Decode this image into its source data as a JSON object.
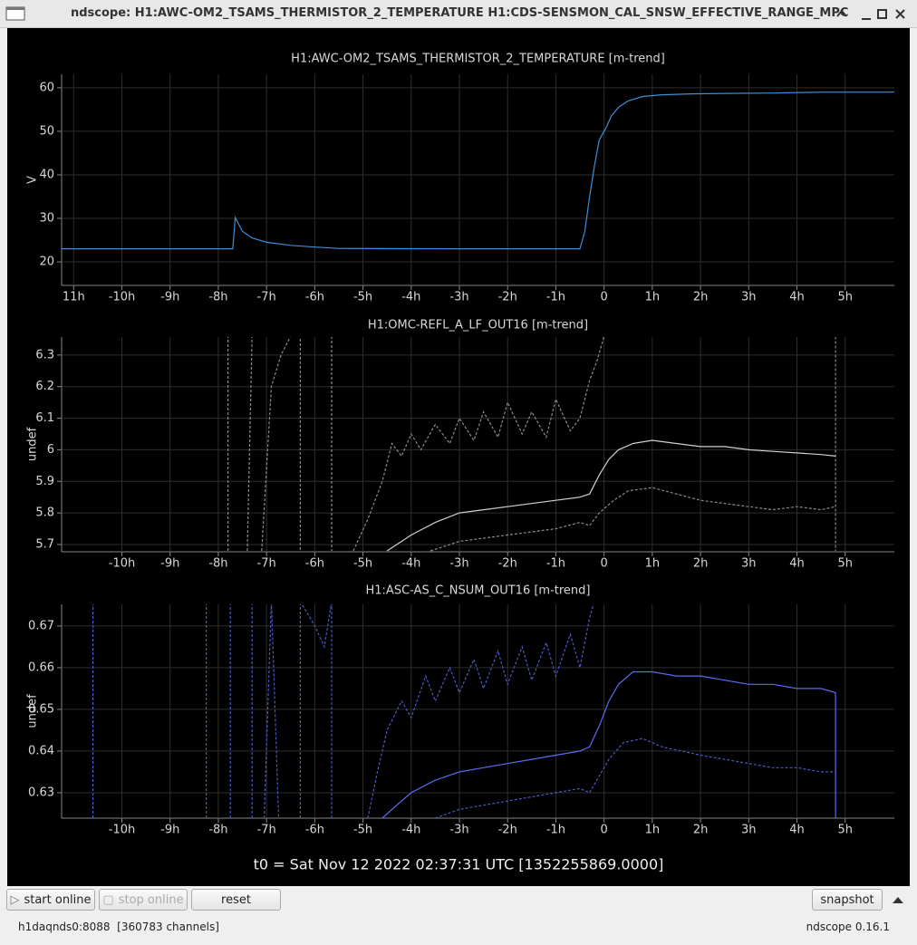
{
  "window": {
    "title": "ndscope: H1:AWC-OM2_TSAMS_THERMISTOR_2_TEMPERATURE H1:CDS-SENSMON_CAL_SNSW_EFFECTIVE_RANGE_MPC"
  },
  "chart_data": [
    {
      "type": "line",
      "title": "H1:AWC-OM2_TSAMS_THERMISTOR_2_TEMPERATURE [m-trend]",
      "ylabel": "V",
      "grid": true,
      "xlim": [
        -11.25,
        6.02
      ],
      "ylim": [
        14.6,
        63.1
      ],
      "xticks": [
        {
          "value": -11,
          "label": "11h"
        },
        {
          "value": -10,
          "label": "-10h"
        },
        {
          "value": -9,
          "label": "-9h"
        },
        {
          "value": -8,
          "label": "-8h"
        },
        {
          "value": -7,
          "label": "-7h"
        },
        {
          "value": -6,
          "label": "-6h"
        },
        {
          "value": -5,
          "label": "-5h"
        },
        {
          "value": -4,
          "label": "-4h"
        },
        {
          "value": -3,
          "label": "-3h"
        },
        {
          "value": -2,
          "label": "-2h"
        },
        {
          "value": -1,
          "label": "-1h"
        },
        0,
        {
          "value": 1,
          "label": "1h"
        },
        {
          "value": 2,
          "label": "2h"
        },
        {
          "value": 3,
          "label": "3h"
        },
        {
          "value": 4,
          "label": "4h"
        },
        {
          "value": 5,
          "label": "5h"
        }
      ],
      "yticks": [
        20,
        30,
        40,
        50,
        60
      ],
      "series": [
        {
          "color": "#3c8fd8",
          "dashed": false,
          "x": [
            -11.25,
            -7.7,
            -7.65,
            -7.5,
            -7.3,
            -7,
            -6.5,
            -6,
            -5.5,
            -3,
            -0.5,
            -0.4,
            -0.3,
            -0.2,
            -0.1,
            0.05,
            0.15,
            0.3,
            0.5,
            0.8,
            1.2,
            1.8,
            2.5,
            3.5,
            4.5,
            6.02
          ],
          "values": [
            23,
            23,
            30.2,
            27,
            25.5,
            24.5,
            23.8,
            23.4,
            23.1,
            23,
            23,
            27,
            35,
            42,
            48,
            51,
            53.5,
            55.5,
            57,
            58,
            58.4,
            58.6,
            58.7,
            58.8,
            59,
            59
          ]
        }
      ]
    },
    {
      "type": "line",
      "title": "H1:OMC-REFL_A_LF_OUT16 [m-trend]",
      "ylabel": "undef",
      "grid": true,
      "xlim": [
        -11.25,
        6.02
      ],
      "ylim": [
        5.677,
        6.357
      ],
      "xticks": [
        {
          "value": -10,
          "label": "-10h"
        },
        {
          "value": -9,
          "label": "-9h"
        },
        {
          "value": -8,
          "label": "-8h"
        },
        {
          "value": -7,
          "label": "-7h"
        },
        {
          "value": -6,
          "label": "-6h"
        },
        {
          "value": -5,
          "label": "-5h"
        },
        {
          "value": -4,
          "label": "-4h"
        },
        {
          "value": -3,
          "label": "-3h"
        },
        {
          "value": -2,
          "label": "-2h"
        },
        {
          "value": -1,
          "label": "-1h"
        },
        0,
        {
          "value": 1,
          "label": "1h"
        },
        {
          "value": 2,
          "label": "2h"
        },
        {
          "value": 3,
          "label": "3h"
        },
        {
          "value": 4,
          "label": "4h"
        },
        {
          "value": 5,
          "label": "5h"
        }
      ],
      "yticks": [
        5.7,
        5.8,
        5.9,
        6,
        6.1,
        6.2,
        6.3
      ],
      "series": [
        {
          "color": "#8a8a8a",
          "dashed": true,
          "x": [
            -7.8,
            -7.8,
            -7.75,
            -7.4,
            -7.3,
            -7.25,
            -7.1,
            -6.9,
            -6.7,
            -6.5,
            -6.3,
            -6.3,
            -6.2,
            -5.65,
            -5.65,
            -5.6,
            -5.2,
            -4.9,
            -4.6,
            -4.4,
            -4.2,
            -4.0,
            -3.8,
            -3.5,
            -3.2,
            -3.0,
            -2.7,
            -2.5,
            -2.2,
            -2.0,
            -1.7,
            -1.5,
            -1.2,
            -1.0,
            -0.7,
            -0.5,
            -0.3,
            -0.15,
            0,
            4.8,
            4.8
          ],
          "values": [
            5.68,
            6.36,
            null,
            5.68,
            6.36,
            null,
            5.68,
            6.2,
            6.3,
            6.36,
            6.36,
            5.68,
            null,
            6.36,
            5.68,
            null,
            5.68,
            5.78,
            5.9,
            6.02,
            5.98,
            6.05,
            6.0,
            6.08,
            6.02,
            6.1,
            6.03,
            6.12,
            6.04,
            6.15,
            6.05,
            6.12,
            6.04,
            6.16,
            6.06,
            6.1,
            6.22,
            6.28,
            6.36,
            6.36,
            5.68
          ]
        },
        {
          "color": "#8a8a8a",
          "dashed": true,
          "x": [
            -3.6,
            -3,
            -2.5,
            -2,
            -1.5,
            -1,
            -0.5,
            -0.3,
            -0.1,
            0.2,
            0.5,
            1,
            1.5,
            2,
            2.5,
            3,
            3.5,
            4,
            4.5,
            4.8
          ],
          "values": [
            5.68,
            5.71,
            5.72,
            5.73,
            5.74,
            5.75,
            5.77,
            5.76,
            5.8,
            5.84,
            5.87,
            5.88,
            5.86,
            5.84,
            5.83,
            5.82,
            5.81,
            5.82,
            5.81,
            5.82
          ]
        },
        {
          "color": "#d0d0d0",
          "dashed": false,
          "x": [
            -4.5,
            -4.2,
            -4,
            -3.5,
            -3,
            -2.5,
            -2,
            -1.5,
            -1,
            -0.5,
            -0.3,
            -0.1,
            0.1,
            0.3,
            0.6,
            1,
            1.5,
            2,
            2.5,
            3,
            3.5,
            4,
            4.5,
            4.8
          ],
          "values": [
            5.68,
            5.71,
            5.73,
            5.77,
            5.8,
            5.81,
            5.82,
            5.83,
            5.84,
            5.85,
            5.86,
            5.92,
            5.97,
            6.0,
            6.02,
            6.03,
            6.02,
            6.01,
            6.01,
            6.0,
            5.995,
            5.99,
            5.985,
            5.98
          ]
        }
      ]
    },
    {
      "type": "line",
      "title": "H1:ASC-AS_C_NSUM_OUT16 [m-trend]",
      "ylabel": "undef",
      "grid": true,
      "xlim": [
        -11.25,
        6.02
      ],
      "ylim": [
        0.6239,
        0.6752
      ],
      "xticks": [
        {
          "value": -10,
          "label": "-10h"
        },
        {
          "value": -9,
          "label": "-9h"
        },
        {
          "value": -8,
          "label": "-8h"
        },
        {
          "value": -7,
          "label": "-7h"
        },
        {
          "value": -6,
          "label": "-6h"
        },
        {
          "value": -5,
          "label": "-5h"
        },
        {
          "value": -4,
          "label": "-4h"
        },
        {
          "value": -3,
          "label": "-3h"
        },
        {
          "value": -2,
          "label": "-2h"
        },
        {
          "value": -1,
          "label": "-1h"
        },
        0,
        {
          "value": 1,
          "label": "1h"
        },
        {
          "value": 2,
          "label": "2h"
        },
        {
          "value": 3,
          "label": "3h"
        },
        {
          "value": 4,
          "label": "4h"
        },
        {
          "value": 5,
          "label": "5h"
        }
      ],
      "yticks": [
        0.63,
        0.64,
        0.65,
        0.66,
        0.67
      ],
      "series": [
        {
          "color": "#4a58c0",
          "dashed": true,
          "x": [
            -10.6,
            -10.6,
            -10.55,
            -8.25,
            -8.25,
            -8.2,
            -7.75,
            -7.75,
            -7.7,
            -7.3,
            -7.3,
            -7.25,
            -7.05,
            -6.9,
            -6.75,
            -6.7,
            -6.3,
            -6.3,
            -6.0,
            -5.8,
            -5.65,
            -5.65,
            -5.6,
            -4.9,
            -4.7,
            -4.5,
            -4.2,
            -4,
            -3.7,
            -3.5,
            -3.2,
            -3,
            -2.7,
            -2.5,
            -2.2,
            -2,
            -1.7,
            -1.5,
            -1.2,
            -1,
            -0.7,
            -0.5,
            -0.3,
            -0.2
          ],
          "values": [
            0.6239,
            0.676,
            null,
            0.6239,
            0.676,
            null,
            0.6239,
            0.676,
            null,
            0.6239,
            0.676,
            null,
            0.6239,
            0.676,
            0.6239,
            null,
            0.6239,
            0.676,
            0.67,
            0.665,
            0.676,
            0.6239,
            null,
            0.6239,
            0.635,
            0.645,
            0.652,
            0.648,
            0.658,
            0.652,
            0.66,
            0.654,
            0.662,
            0.655,
            0.664,
            0.656,
            0.665,
            0.657,
            0.666,
            0.658,
            0.668,
            0.66,
            0.672,
            0.676
          ]
        },
        {
          "color": "#4a58c0",
          "dashed": true,
          "x": [
            -3.5,
            -3,
            -2.5,
            -2,
            -1.5,
            -1,
            -0.5,
            -0.3,
            -0.1,
            0.1,
            0.4,
            0.8,
            1.2,
            2,
            2.5,
            3,
            3.5,
            4,
            4.5,
            4.8
          ],
          "values": [
            0.6239,
            0.626,
            0.627,
            0.628,
            0.629,
            0.63,
            0.631,
            0.63,
            0.634,
            0.638,
            0.642,
            0.643,
            0.641,
            0.639,
            0.638,
            0.637,
            0.636,
            0.636,
            0.635,
            0.635
          ]
        },
        {
          "color": "#5b6cf0",
          "dashed": false,
          "x": [
            -4.6,
            -4.3,
            -4,
            -3.5,
            -3,
            -2.5,
            -2,
            -1.5,
            -1,
            -0.5,
            -0.3,
            -0.1,
            0.1,
            0.3,
            0.6,
            1,
            1.5,
            2,
            2.5,
            3,
            3.5,
            4,
            4.5,
            4.8,
            4.8
          ],
          "values": [
            0.6239,
            0.627,
            0.63,
            0.633,
            0.635,
            0.636,
            0.637,
            0.638,
            0.639,
            0.64,
            0.641,
            0.646,
            0.652,
            0.656,
            0.659,
            0.659,
            0.658,
            0.658,
            0.657,
            0.656,
            0.656,
            0.655,
            0.655,
            0.654,
            0.6239
          ]
        }
      ]
    }
  ],
  "t0": "t0 = Sat Nov 12 2022 02:37:31 UTC [1352255869.0000]",
  "buttons": {
    "start": "start online",
    "stop": "stop online",
    "reset": "reset",
    "snapshot": "snapshot"
  },
  "status": {
    "server": "h1daqnds0:8088  [360783 channels]",
    "version": "ndscope 0.16.1"
  }
}
